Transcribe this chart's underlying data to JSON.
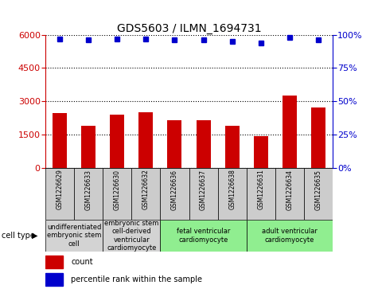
{
  "title": "GDS5603 / ILMN_1694731",
  "samples": [
    "GSM1226629",
    "GSM1226633",
    "GSM1226630",
    "GSM1226632",
    "GSM1226636",
    "GSM1226637",
    "GSM1226638",
    "GSM1226631",
    "GSM1226634",
    "GSM1226635"
  ],
  "counts": [
    2450,
    1900,
    2400,
    2500,
    2150,
    2150,
    1900,
    1430,
    3250,
    2700
  ],
  "percentile_ranks": [
    97,
    96,
    97,
    97,
    96,
    96,
    95,
    94,
    98,
    96
  ],
  "bar_color": "#cc0000",
  "dot_color": "#0000cc",
  "ylim_left": [
    0,
    6000
  ],
  "ylim_right": [
    0,
    100
  ],
  "yticks_left": [
    0,
    1500,
    3000,
    4500,
    6000
  ],
  "yticks_right": [
    0,
    25,
    50,
    75,
    100
  ],
  "cell_types": [
    {
      "label": "undifferentiated\nembryonic stem\ncell",
      "color": "#d3d3d3",
      "start": 0,
      "end": 2
    },
    {
      "label": "embryonic stem\ncell-derived\nventricular\ncardiomyocyte",
      "color": "#d3d3d3",
      "start": 2,
      "end": 4
    },
    {
      "label": "fetal ventricular\ncardiomyocyte",
      "color": "#90ee90",
      "start": 4,
      "end": 7
    },
    {
      "label": "adult ventricular\ncardiomyocyte",
      "color": "#90ee90",
      "start": 7,
      "end": 10
    }
  ],
  "left_axis_color": "#cc0000",
  "right_axis_color": "#0000cc",
  "background_color": "#ffffff",
  "bar_width": 0.5,
  "title_fontsize": 10,
  "tick_fontsize": 8,
  "label_fontsize": 5.5,
  "celltype_fontsize": 6,
  "legend_fontsize": 7
}
